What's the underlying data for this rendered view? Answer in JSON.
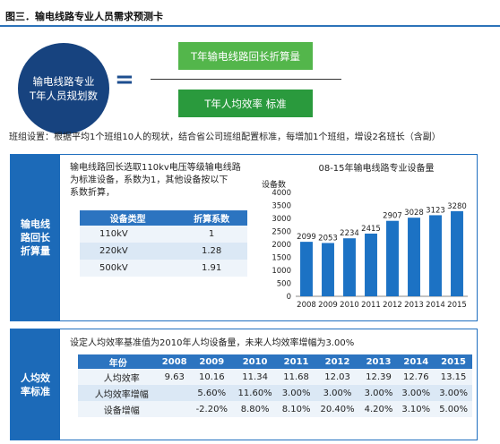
{
  "title": "图三．输电线路专业人员需求预测卡",
  "formula": {
    "circle_line1": "输电线路专业",
    "circle_line2": "T年人员规划数",
    "equals": "=",
    "numerator": "T年输电线路回长折算量",
    "denominator": "T年人均效率 标准"
  },
  "note": "班组设置：根据平均1个班组10人的现状，结合省公司班组配置标准，每增加1个班组，增设2名班长（含副）",
  "panel1": {
    "side_label_line1": "输电线",
    "side_label_line2": "路回长",
    "side_label_line3": "折算量",
    "desc_line1": "输电线路回长选取110kv电压等级输电线路",
    "desc_line2": "为标准设备，系数为1，其他设备按以下",
    "desc_line3": "系数折算，",
    "factor_table": {
      "headers": [
        "设备类型",
        "折算系数"
      ],
      "rows": [
        [
          "110kV",
          "1"
        ],
        [
          "220kV",
          "1.28"
        ],
        [
          "500kV",
          "1.91"
        ]
      ]
    }
  },
  "chart_data": {
    "type": "bar",
    "title": "08-15年输电线路专业设备量",
    "ylabel": "设备数",
    "categories": [
      "2008",
      "2009",
      "2010",
      "2011",
      "2012",
      "2013",
      "2014",
      "2015"
    ],
    "values": [
      2099,
      2053,
      2234,
      2415,
      2907,
      3028,
      3123,
      3280
    ],
    "ylim": [
      0,
      4000
    ],
    "yticks": [
      0,
      500,
      1000,
      1500,
      2000,
      2500,
      3000,
      3500,
      4000
    ],
    "bar_color": "#1c72c4",
    "grid": false,
    "legend": "none"
  },
  "panel2": {
    "side_label_line1": "人均效",
    "side_label_line2": "率标准",
    "desc": "设定人均效率基准值为2010年人均设备量，未来人均效率增幅为3.00%",
    "eff_table": {
      "headers": [
        "年份",
        "2008",
        "2009",
        "2010",
        "2011",
        "2012",
        "2013",
        "2014",
        "2015"
      ],
      "rows": [
        [
          "人均效率",
          "9.63",
          "10.16",
          "11.34",
          "11.68",
          "12.03",
          "12.39",
          "12.76",
          "13.15"
        ],
        [
          "人均效率增幅",
          "",
          "5.60%",
          "11.60%",
          "3.00%",
          "3.00%",
          "3.00%",
          "3.00%",
          "3.00%"
        ],
        [
          "设备增幅",
          "",
          "-2.20%",
          "8.80%",
          "8.10%",
          "20.40%",
          "4.20%",
          "3.10%",
          "5.00%"
        ]
      ]
    }
  },
  "colors": {
    "accent_blue": "#1c6ab8",
    "dark_navy": "#17437f",
    "green_light": "#53b64b",
    "green_dark": "#2a9a3d"
  }
}
